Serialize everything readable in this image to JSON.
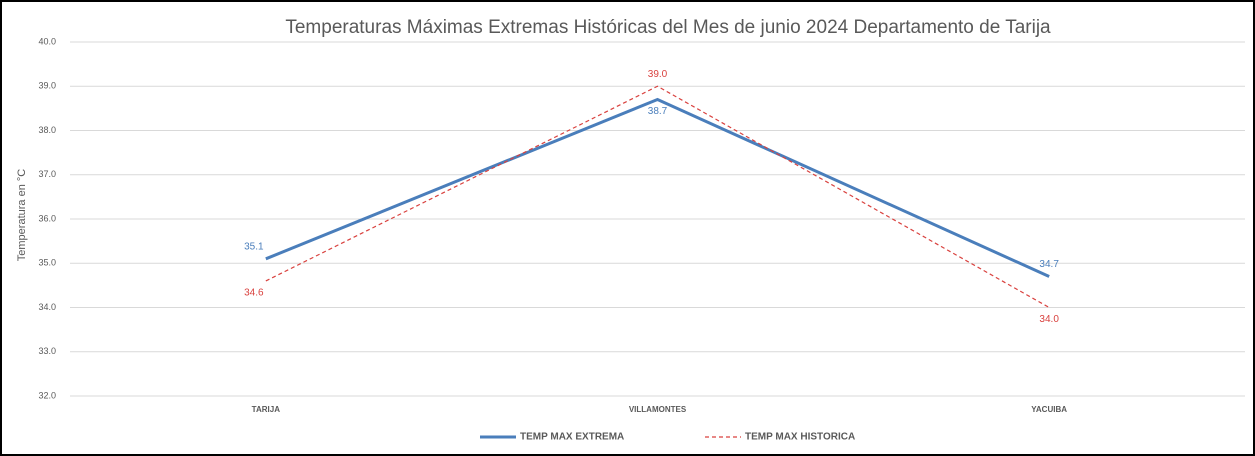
{
  "chart_data": {
    "type": "line",
    "title": "Temperaturas Máximas Extremas Históricas del Mes de junio 2024 Departamento de Tarija",
    "y_label": "Temperatura en °C",
    "categories": [
      "TARIJA",
      "VILLAMONTES",
      "YACUIBA"
    ],
    "series": [
      {
        "name": "TEMP MAX EXTREMA",
        "color": "#4a7ebb",
        "dash": "solid",
        "values": [
          35.1,
          38.7,
          34.7
        ],
        "value_labels": [
          "35.1",
          "38.7",
          "34.7"
        ]
      },
      {
        "name": "TEMP MAX HISTORICA",
        "color": "#d9413e",
        "dash": "dashed",
        "values": [
          34.6,
          39.0,
          34.0
        ],
        "value_labels": [
          "34.6",
          "39.0",
          "34.0"
        ]
      }
    ],
    "ylim": [
      32,
      40
    ],
    "yticks": [
      {
        "value": 32,
        "label": "32.0"
      },
      {
        "value": 33,
        "label": "33.0"
      },
      {
        "value": 34,
        "label": "34.0"
      },
      {
        "value": 35,
        "label": "35.0"
      },
      {
        "value": 36,
        "label": "36.0"
      },
      {
        "value": 37,
        "label": "37.0"
      },
      {
        "value": 38,
        "label": "38.0"
      },
      {
        "value": 39,
        "label": "39.0"
      },
      {
        "value": 40,
        "label": "40.0"
      }
    ],
    "grid": true,
    "legend": "bottom"
  }
}
